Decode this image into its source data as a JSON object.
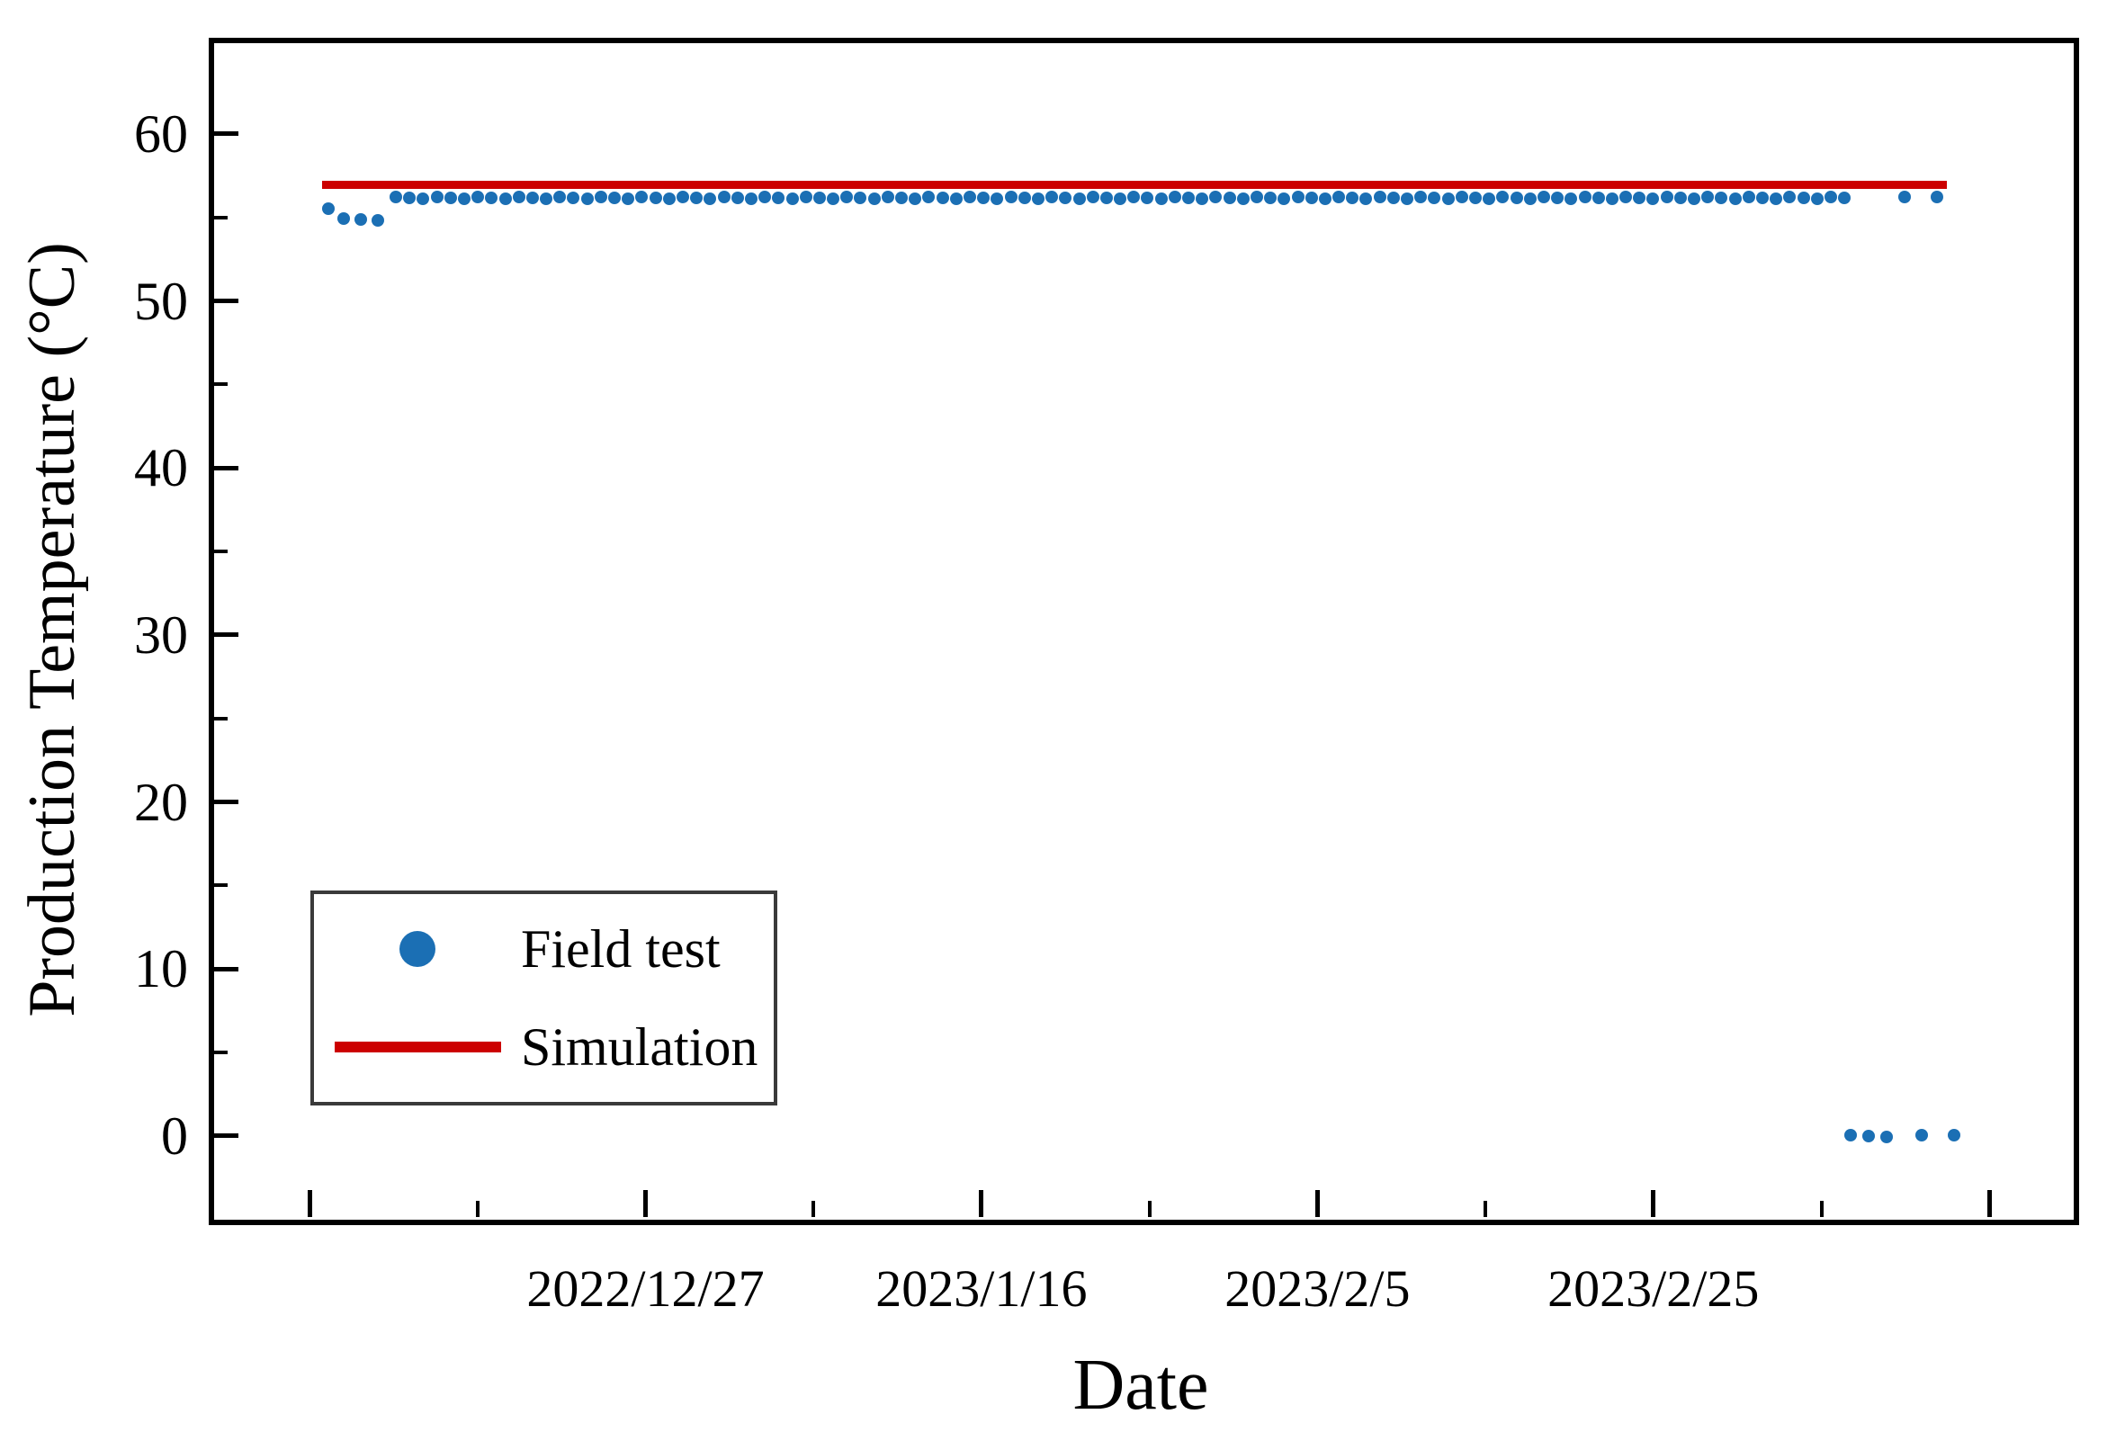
{
  "chart_data": {
    "type": "scatter",
    "title": "",
    "xlabel": "Date",
    "ylabel": "Production Temperature (°C)",
    "grid": false,
    "x_axis": {
      "unit": "days since 2022/12/7",
      "range_days": [
        -5.84,
        104.86
      ],
      "major_ticks_days": [
        0,
        20,
        40,
        60,
        80,
        100
      ],
      "major_tick_labels": [
        "",
        "2022/12/27",
        "2023/1/16",
        "2023/2/5",
        "2023/2/25",
        ""
      ],
      "minor_ticks_days": [
        10,
        30,
        50,
        70,
        90
      ]
    },
    "y_axis": {
      "range": [
        -4.85,
        65.6
      ],
      "major_ticks": [
        0,
        10,
        20,
        30,
        40,
        50,
        60
      ],
      "major_tick_labels": [
        "0",
        "10",
        "20",
        "30",
        "40",
        "50",
        "60"
      ],
      "minor_ticks": [
        5,
        15,
        25,
        35,
        45,
        55
      ]
    },
    "series": [
      {
        "name": "Field test",
        "type": "scatter",
        "color": "#1b6fb4",
        "marker": "circle",
        "runs": [
          {
            "start_day": 1.1,
            "step_day": 1.0,
            "count": 1,
            "value": 55.5
          },
          {
            "start_day": 2.05,
            "step_day": 1.02,
            "count": 3,
            "value": 54.9
          },
          {
            "start_day": 5.14,
            "step_day": 0.8135,
            "count": 107,
            "value": 56.15
          },
          {
            "start_day": 94.95,
            "step_day": 1.0,
            "count": 1,
            "value": 56.2
          },
          {
            "start_day": 96.88,
            "step_day": 1.0,
            "count": 1,
            "value": 56.2
          },
          {
            "start_day": 91.75,
            "step_day": 1.07,
            "count": 3,
            "value": 0
          },
          {
            "start_day": 95.95,
            "step_day": 1.0,
            "count": 1,
            "value": 0
          },
          {
            "start_day": 97.9,
            "step_day": 1.0,
            "count": 1,
            "value": 0
          }
        ]
      },
      {
        "name": "Simulation",
        "type": "line",
        "color": "#cc0000",
        "value": 56.95,
        "start_day": 0.75,
        "end_day": 97.45
      }
    ],
    "legend": {
      "position": "lower-left",
      "entries": [
        {
          "label": "Field test",
          "marker": "dot",
          "color": "#1b6fb4"
        },
        {
          "label": "Simulation",
          "marker": "line",
          "color": "#cc0000"
        }
      ]
    }
  }
}
